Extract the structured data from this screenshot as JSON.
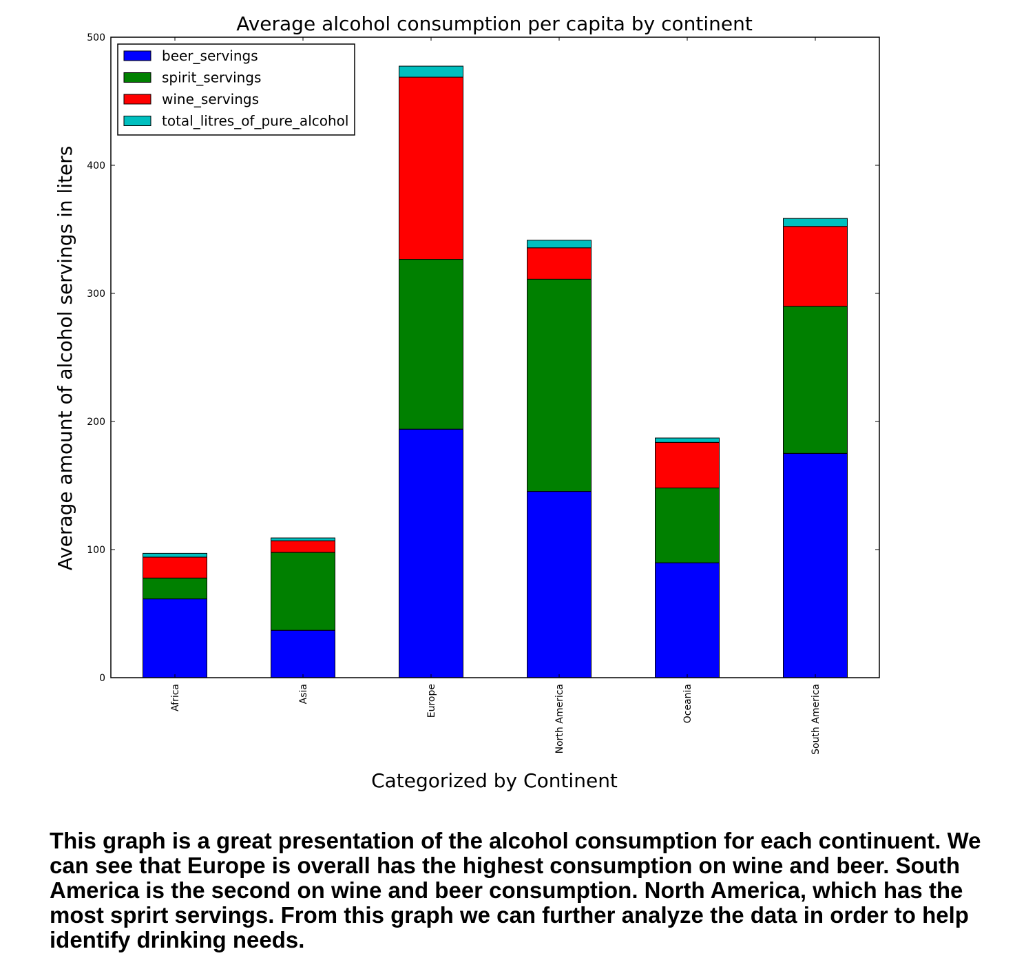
{
  "chart_data": {
    "type": "bar",
    "stacked": true,
    "title": "Average alcohol consumption per capita by continent",
    "xlabel": "Categorized by Continent",
    "ylabel": "Average amount of alcohol servings in liters",
    "categories": [
      "Africa",
      "Asia",
      "Europe",
      "North America",
      "Oceania",
      "South America"
    ],
    "series": [
      {
        "name": "beer_servings",
        "color": "#0000ff",
        "values": [
          61.5,
          37.0,
          194.0,
          145.4,
          89.7,
          175.1
        ]
      },
      {
        "name": "spirit_servings",
        "color": "#008000",
        "values": [
          16.3,
          60.8,
          132.6,
          165.7,
          58.4,
          114.8
        ]
      },
      {
        "name": "wine_servings",
        "color": "#ff0000",
        "values": [
          16.3,
          9.1,
          142.2,
          24.5,
          35.6,
          62.4
        ]
      },
      {
        "name": "total_litres_of_pure_alcohol",
        "color": "#00bfbf",
        "values": [
          3.0,
          2.2,
          8.6,
          5.9,
          3.4,
          6.2
        ]
      }
    ],
    "ylim": [
      0,
      500
    ],
    "yticks": [
      "0",
      "100",
      "200",
      "300",
      "400",
      "500"
    ],
    "legend_position": "top-left",
    "grid": false
  },
  "caption": "This graph is a great presentation of the alcohol consumption for each continuent. We can see that Europe is overall has the highest consumption on wine and beer. South America is the second on wine and beer consumption. North America, which has the most sprirt servings. From this graph we can further analyze the data in order to help identify drinking needs."
}
